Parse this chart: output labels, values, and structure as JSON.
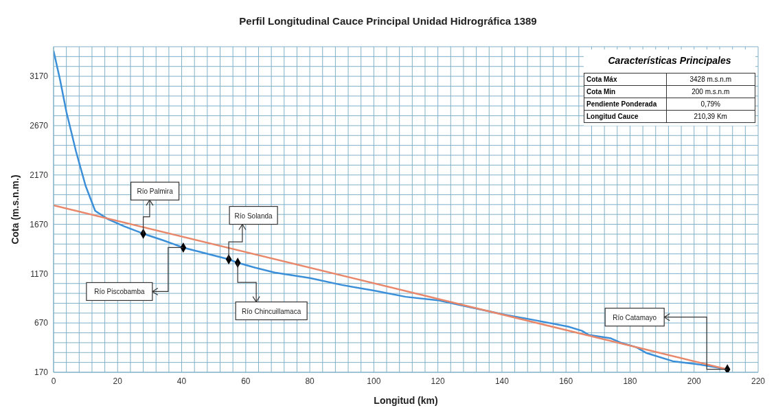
{
  "chart_data": {
    "type": "line",
    "title": "Perfil Longitudinal Cauce Principal Unidad Hidrográfica 1389",
    "xlabel": "Longitud (km)",
    "ylabel": "Cota (m.s.n.m.)",
    "xlim": [
      0,
      220
    ],
    "ylim": [
      170,
      3470
    ],
    "grid": true,
    "xticks": [
      0,
      {
        "value": 4,
        "label": null
      },
      {
        "value": 8,
        "label": null
      },
      {
        "value": 12,
        "label": null
      },
      {
        "value": 16,
        "label": null
      },
      20,
      {
        "value": 24,
        "label": null
      },
      {
        "value": 28,
        "label": null
      },
      {
        "value": 32,
        "label": null
      },
      {
        "value": 36,
        "label": null
      },
      40,
      {
        "value": 44,
        "label": null
      },
      {
        "value": 48,
        "label": null
      },
      {
        "value": 52,
        "label": null
      },
      {
        "value": 56,
        "label": null
      },
      60,
      {
        "value": 64,
        "label": null
      },
      {
        "value": 68,
        "label": null
      },
      {
        "value": 72,
        "label": null
      },
      {
        "value": 76,
        "label": null
      },
      80,
      {
        "value": 84,
        "label": null
      },
      {
        "value": 88,
        "label": null
      },
      {
        "value": 92,
        "label": null
      },
      {
        "value": 96,
        "label": null
      },
      100,
      {
        "value": 104,
        "label": null
      },
      {
        "value": 108,
        "label": null
      },
      {
        "value": 112,
        "label": null
      },
      {
        "value": 116,
        "label": null
      },
      120,
      {
        "value": 124,
        "label": null
      },
      {
        "value": 128,
        "label": null
      },
      {
        "value": 132,
        "label": null
      },
      {
        "value": 136,
        "label": null
      },
      140,
      {
        "value": 144,
        "label": null
      },
      {
        "value": 148,
        "label": null
      },
      {
        "value": 152,
        "label": null
      },
      {
        "value": 156,
        "label": null
      },
      160,
      {
        "value": 164,
        "label": null
      },
      {
        "value": 168,
        "label": null
      },
      {
        "value": 172,
        "label": null
      },
      {
        "value": 176,
        "label": null
      },
      180,
      {
        "value": 184,
        "label": null
      },
      {
        "value": 188,
        "label": null
      },
      {
        "value": 192,
        "label": null
      },
      {
        "value": 196,
        "label": null
      },
      200,
      {
        "value": 204,
        "label": null
      },
      {
        "value": 208,
        "label": null
      },
      {
        "value": 212,
        "label": null
      },
      {
        "value": 216,
        "label": null
      },
      220
    ],
    "yticks": [
      170,
      {
        "value": 270,
        "label": null
      },
      {
        "value": 370,
        "label": null
      },
      {
        "value": 470,
        "label": null
      },
      {
        "value": 570,
        "label": null
      },
      670,
      {
        "value": 770,
        "label": null
      },
      {
        "value": 870,
        "label": null
      },
      {
        "value": 970,
        "label": null
      },
      {
        "value": 1070,
        "label": null
      },
      1170,
      {
        "value": 1270,
        "label": null
      },
      {
        "value": 1370,
        "label": null
      },
      {
        "value": 1470,
        "label": null
      },
      {
        "value": 1570,
        "label": null
      },
      1670,
      {
        "value": 1770,
        "label": null
      },
      {
        "value": 1870,
        "label": null
      },
      {
        "value": 1970,
        "label": null
      },
      {
        "value": 2070,
        "label": null
      },
      2170,
      {
        "value": 2270,
        "label": null
      },
      {
        "value": 2370,
        "label": null
      },
      {
        "value": 2470,
        "label": null
      },
      {
        "value": 2570,
        "label": null
      },
      2670,
      {
        "value": 2770,
        "label": null
      },
      {
        "value": 2870,
        "label": null
      },
      {
        "value": 2970,
        "label": null
      },
      {
        "value": 3070,
        "label": null
      },
      3170,
      {
        "value": 3270,
        "label": null
      },
      {
        "value": 3370,
        "label": null
      },
      {
        "value": 3470,
        "label": null
      }
    ],
    "series": [
      {
        "color": "#3a8fd8",
        "marker": "none",
        "x": [
          0,
          2,
          4,
          7,
          10,
          13,
          17,
          22,
          28,
          34,
          40.5,
          47,
          54.7,
          57.5,
          63,
          69,
          80,
          90,
          100,
          110,
          120,
          130,
          141,
          150,
          160.7,
          165,
          167,
          174,
          177,
          182,
          185,
          193.4,
          200.6,
          205,
          210.39
        ],
        "values": [
          3428,
          3140,
          2810,
          2410,
          2060,
          1806,
          1722,
          1650,
          1575,
          1510,
          1434,
          1380,
          1315,
          1280,
          1230,
          1181,
          1125,
          1055,
          999,
          935,
          900,
          830,
          753,
          700,
          633,
          590,
          550,
          514,
          472,
          423,
          367,
          282,
          254,
          230,
          200
        ]
      },
      {
        "color": "#e8876a",
        "marker": "none",
        "x": [
          0,
          210.39
        ],
        "values": [
          1862,
          200
        ]
      },
      {
        "type": "scatter",
        "color": "#000000",
        "marker": "diamond",
        "x": [
          28,
          40.5,
          54.7,
          57.5,
          210.39
        ],
        "values": [
          1575,
          1434,
          1315,
          1280,
          200
        ]
      }
    ],
    "annotations": [
      {
        "text": "Río Palmira",
        "x": 28,
        "y": 1575
      },
      {
        "text": "Río Piscobamba",
        "x": 40.5,
        "y": 1434
      },
      {
        "text": "Río Solanda",
        "x": 54.7,
        "y": 1315
      },
      {
        "text": "Río Chincuillamaca",
        "x": 57.5,
        "y": 1280
      },
      {
        "text": "Río Catamayo",
        "x": 210.39,
        "y": 200
      },
      "Características Principales",
      "Cota Máx",
      "3428 m.s.n.m",
      "Cota Min",
      "200 m.s.n.m",
      "Pendiente Ponderada",
      "0,79%",
      "Longitud Cauce",
      "210,39 Km"
    ]
  }
}
